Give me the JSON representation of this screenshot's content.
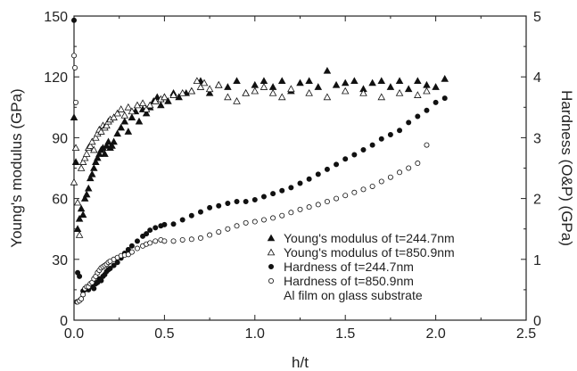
{
  "chart_data": {
    "type": "scatter",
    "xlabel": "h/t",
    "ylabel": "Young's modulus (GPa)",
    "y2label": "Hardness (O&P) (GPa)",
    "xlim": [
      0,
      2.5
    ],
    "ylim": [
      0,
      150
    ],
    "y2lim": [
      0,
      5
    ],
    "xticks": [
      "0.0",
      "0.5",
      "1.0",
      "1.5",
      "2.0",
      "2.5"
    ],
    "yticks": [
      "0",
      "30",
      "60",
      "90",
      "120",
      "150"
    ],
    "y2ticks": [
      "0",
      "1",
      "2",
      "3",
      "4",
      "5"
    ],
    "grid": false,
    "legend_position": "bottom-right",
    "legend_note": "Al film on glass substrate",
    "series": [
      {
        "name": "Young's modulus of t=244.7nm",
        "marker": "filled-triangle",
        "axis": "left",
        "x": [
          0.0,
          0.01,
          0.02,
          0.03,
          0.04,
          0.05,
          0.06,
          0.07,
          0.08,
          0.09,
          0.1,
          0.11,
          0.12,
          0.13,
          0.14,
          0.15,
          0.16,
          0.17,
          0.18,
          0.19,
          0.2,
          0.21,
          0.22,
          0.24,
          0.26,
          0.28,
          0.3,
          0.32,
          0.34,
          0.36,
          0.38,
          0.4,
          0.42,
          0.44,
          0.46,
          0.48,
          0.5,
          0.52,
          0.55,
          0.58,
          0.62,
          0.65,
          0.7,
          0.75,
          0.8,
          0.85,
          0.9,
          0.95,
          1.0,
          1.05,
          1.1,
          1.15,
          1.2,
          1.25,
          1.3,
          1.35,
          1.4,
          1.45,
          1.5,
          1.55,
          1.6,
          1.65,
          1.7,
          1.75,
          1.8,
          1.85,
          1.9,
          1.95,
          2.0,
          2.05
        ],
        "y": [
          100,
          78,
          45,
          50,
          55,
          52,
          60,
          62,
          65,
          70,
          72,
          75,
          78,
          80,
          82,
          84,
          85,
          82,
          86,
          88,
          85,
          86,
          88,
          92,
          95,
          98,
          93,
          100,
          103,
          98,
          104,
          102,
          105,
          108,
          110,
          106,
          110,
          108,
          112,
          110,
          112,
          113,
          118,
          112,
          116,
          115,
          118,
          112,
          116,
          118,
          115,
          118,
          113,
          117,
          118,
          115,
          123,
          116,
          117,
          118,
          114,
          117,
          118,
          115,
          118,
          114,
          118,
          116,
          115,
          119
        ]
      },
      {
        "name": "Young's modulus of t=850.9nm",
        "marker": "open-triangle",
        "axis": "left",
        "x": [
          0.0,
          0.01,
          0.02,
          0.03,
          0.04,
          0.05,
          0.06,
          0.07,
          0.08,
          0.09,
          0.1,
          0.11,
          0.12,
          0.13,
          0.14,
          0.15,
          0.16,
          0.17,
          0.18,
          0.19,
          0.2,
          0.22,
          0.24,
          0.26,
          0.28,
          0.3,
          0.32,
          0.35,
          0.38,
          0.4,
          0.42,
          0.45,
          0.48,
          0.5,
          0.55,
          0.6,
          0.65,
          0.68,
          0.7,
          0.72,
          0.75,
          0.8,
          0.85,
          0.9,
          0.95,
          1.0,
          1.05,
          1.1,
          1.15,
          1.2,
          1.3,
          1.4,
          1.5,
          1.6,
          1.7,
          1.8,
          1.9,
          1.95
        ],
        "y": [
          68,
          85,
          58,
          42,
          75,
          78,
          80,
          82,
          85,
          86,
          88,
          84,
          90,
          92,
          94,
          93,
          96,
          95,
          96,
          98,
          99,
          100,
          102,
          104,
          101,
          105,
          103,
          106,
          107,
          104,
          106,
          108,
          109,
          110,
          111,
          112,
          113,
          118,
          115,
          117,
          114,
          116,
          110,
          108,
          112,
          113,
          115,
          112,
          110,
          114,
          112,
          110,
          113,
          112,
          110,
          112,
          111,
          113
        ]
      },
      {
        "name": "Hardness of t=244.7nm",
        "marker": "filled-circle",
        "axis": "right",
        "x": [
          0.0,
          0.02,
          0.03,
          0.05,
          0.06,
          0.07,
          0.08,
          0.09,
          0.1,
          0.11,
          0.12,
          0.13,
          0.14,
          0.15,
          0.16,
          0.17,
          0.18,
          0.19,
          0.2,
          0.22,
          0.24,
          0.26,
          0.28,
          0.3,
          0.32,
          0.35,
          0.38,
          0.4,
          0.42,
          0.45,
          0.48,
          0.5,
          0.55,
          0.6,
          0.65,
          0.7,
          0.75,
          0.8,
          0.85,
          0.9,
          0.95,
          1.0,
          1.05,
          1.1,
          1.15,
          1.2,
          1.25,
          1.3,
          1.35,
          1.4,
          1.45,
          1.5,
          1.55,
          1.6,
          1.65,
          1.7,
          1.75,
          1.8,
          1.85,
          1.9,
          1.95,
          2.0,
          2.05
        ],
        "y": [
          4.93,
          0.78,
          0.72,
          0.48,
          0.5,
          0.52,
          0.5,
          0.55,
          0.58,
          0.52,
          0.6,
          0.62,
          0.68,
          0.65,
          0.72,
          0.75,
          0.8,
          0.83,
          0.85,
          0.9,
          0.95,
          1.02,
          1.1,
          1.16,
          1.22,
          1.3,
          1.38,
          1.42,
          1.48,
          1.52,
          1.55,
          1.57,
          1.58,
          1.65,
          1.72,
          1.78,
          1.85,
          1.88,
          1.92,
          1.95,
          1.95,
          1.98,
          2.03,
          2.08,
          2.13,
          2.18,
          2.25,
          2.32,
          2.4,
          2.48,
          2.56,
          2.65,
          2.72,
          2.8,
          2.88,
          2.98,
          3.05,
          3.12,
          3.25,
          3.35,
          3.45,
          3.58,
          3.65
        ]
      },
      {
        "name": "Hardness of t=850.9nm",
        "marker": "open-circle",
        "axis": "right",
        "x": [
          0.0,
          0.005,
          0.01,
          0.015,
          0.02,
          0.03,
          0.04,
          0.05,
          0.06,
          0.07,
          0.08,
          0.09,
          0.1,
          0.11,
          0.12,
          0.13,
          0.14,
          0.15,
          0.16,
          0.17,
          0.18,
          0.19,
          0.2,
          0.22,
          0.24,
          0.26,
          0.28,
          0.3,
          0.32,
          0.35,
          0.38,
          0.4,
          0.42,
          0.45,
          0.48,
          0.5,
          0.55,
          0.6,
          0.65,
          0.7,
          0.75,
          0.8,
          0.85,
          0.9,
          0.95,
          1.0,
          1.05,
          1.1,
          1.15,
          1.2,
          1.25,
          1.3,
          1.35,
          1.4,
          1.45,
          1.5,
          1.55,
          1.6,
          1.65,
          1.7,
          1.75,
          1.8,
          1.85,
          1.9,
          1.95
        ],
        "y": [
          4.35,
          4.15,
          3.58,
          0.3,
          0.3,
          0.32,
          0.35,
          0.42,
          0.52,
          0.55,
          0.55,
          0.6,
          0.62,
          0.68,
          0.72,
          0.78,
          0.82,
          0.86,
          0.88,
          0.9,
          0.92,
          0.95,
          0.97,
          1.0,
          1.03,
          1.06,
          1.07,
          1.08,
          1.12,
          1.18,
          1.22,
          1.25,
          1.27,
          1.3,
          1.32,
          1.3,
          1.3,
          1.32,
          1.33,
          1.35,
          1.4,
          1.45,
          1.5,
          1.55,
          1.6,
          1.62,
          1.65,
          1.68,
          1.72,
          1.77,
          1.82,
          1.86,
          1.9,
          1.95,
          2.0,
          2.05,
          2.1,
          2.15,
          2.2,
          2.28,
          2.35,
          2.43,
          2.5,
          2.58,
          2.88
        ]
      }
    ]
  }
}
